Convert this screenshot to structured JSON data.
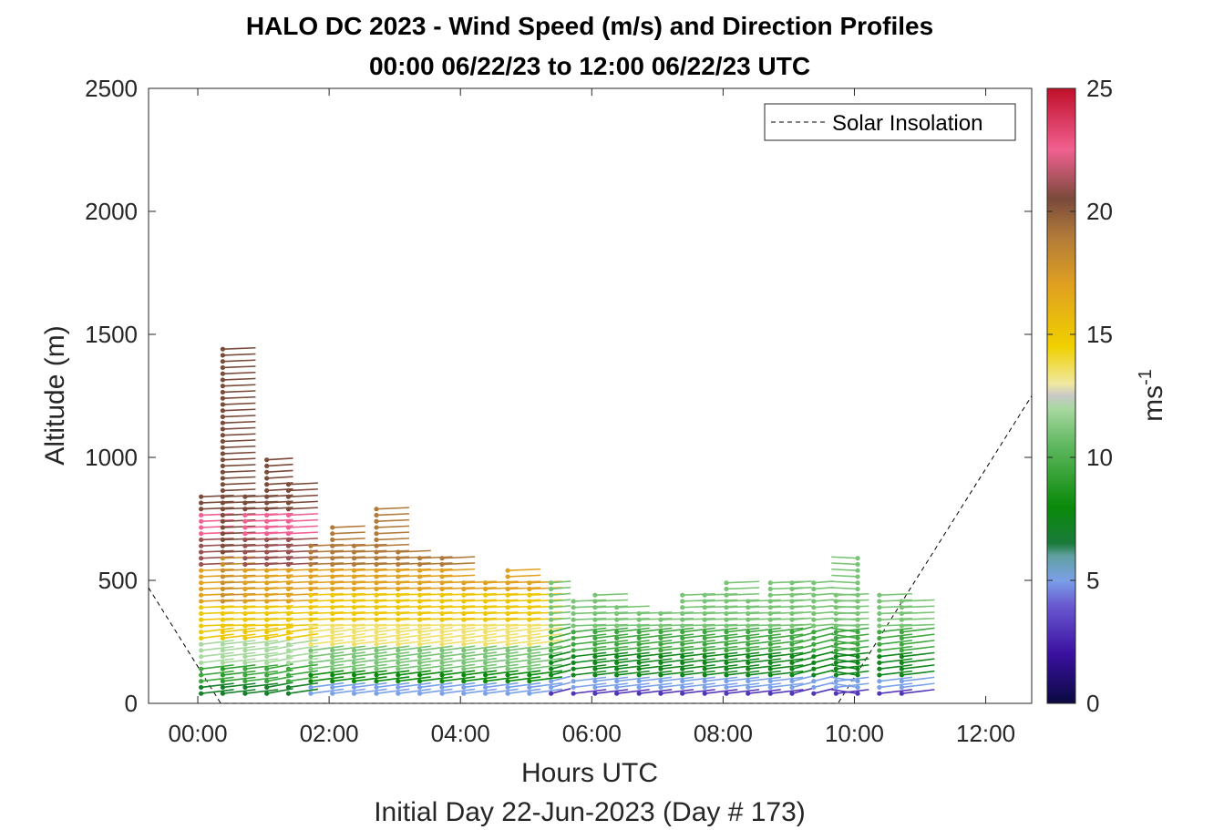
{
  "chart_data": {
    "type": "scatter",
    "title": "HALO DC 2023 - Wind Speed (m/s) and Direction Profiles",
    "subtitle": "00:00 06/22/23 to 12:00 06/22/23  UTC",
    "xlabel": "Hours UTC",
    "xlabel2": "Initial Day 22-Jun-2023 (Day # 173)",
    "ylabel": "Altitude (m)",
    "xlim": [
      -0.75,
      12.7
    ],
    "ylim": [
      0,
      2500
    ],
    "x_ticks": [
      0,
      2,
      4,
      6,
      8,
      10,
      12
    ],
    "x_tick_labels": [
      "00:00",
      "02:00",
      "04:00",
      "06:00",
      "08:00",
      "10:00",
      "12:00"
    ],
    "y_ticks": [
      0,
      500,
      1000,
      1500,
      2000,
      2500
    ],
    "y_tick_labels": [
      "0",
      "500",
      "1000",
      "1500",
      "2000",
      "2500"
    ],
    "colorbar": {
      "label": "ms",
      "label_superscript": "-1",
      "range": [
        0,
        25
      ],
      "ticks": [
        0,
        5,
        10,
        15,
        20,
        25
      ],
      "tick_labels": [
        "0",
        "5",
        "10",
        "15",
        "20",
        "25"
      ]
    },
    "legend": {
      "position": "top-right",
      "entries": [
        "Solar Insolation"
      ]
    },
    "solar_insolation_curve": {
      "x": [
        -0.75,
        0.35,
        0.35,
        9.75,
        9.75,
        12.7
      ],
      "y": [
        470,
        0,
        0,
        0,
        0,
        1250
      ]
    },
    "profiles": [
      {
        "t": 0.05,
        "top": 850,
        "tail": [
          0.5,
          0.2
        ],
        "band": "low"
      },
      {
        "t": 0.38,
        "top": 1450,
        "tail": [
          0.5,
          0.2
        ],
        "band": "tall"
      },
      {
        "t": 0.72,
        "top": 850,
        "tail": [
          0.5,
          0.2
        ],
        "band": "low"
      },
      {
        "t": 1.05,
        "top": 1000,
        "tail": [
          0.4,
          0.25
        ],
        "band": "low"
      },
      {
        "t": 1.38,
        "top": 900,
        "tail": [
          0.45,
          0.22
        ],
        "band": "low"
      },
      {
        "t": 1.72,
        "top": 660,
        "tail": [
          0.5,
          0.22
        ],
        "band": "mid"
      },
      {
        "t": 2.05,
        "top": 720,
        "tail": [
          0.5,
          0.22
        ],
        "band": "mid"
      },
      {
        "t": 2.38,
        "top": 660,
        "tail": [
          0.5,
          0.22
        ],
        "band": "mid"
      },
      {
        "t": 2.72,
        "top": 790,
        "tail": [
          0.5,
          0.22
        ],
        "band": "mid"
      },
      {
        "t": 3.05,
        "top": 620,
        "tail": [
          0.5,
          0.22
        ],
        "band": "mid"
      },
      {
        "t": 3.38,
        "top": 600,
        "tail": [
          0.5,
          0.22
        ],
        "band": "mid"
      },
      {
        "t": 3.72,
        "top": 610,
        "tail": [
          0.5,
          0.22
        ],
        "band": "mid"
      },
      {
        "t": 4.05,
        "top": 500,
        "tail": [
          0.5,
          0.22
        ],
        "band": "mid"
      },
      {
        "t": 4.38,
        "top": 500,
        "tail": [
          0.5,
          0.22
        ],
        "band": "mid"
      },
      {
        "t": 4.72,
        "top": 540,
        "tail": [
          0.5,
          0.22
        ],
        "band": "mid"
      },
      {
        "t": 5.05,
        "top": 500,
        "tail": [
          0.5,
          0.22
        ],
        "band": "mid"
      },
      {
        "t": 5.38,
        "top": 500,
        "tail": [
          0.3,
          0.25
        ],
        "band": "green"
      },
      {
        "t": 5.72,
        "top": 420,
        "tail": [
          0.5,
          0.2
        ],
        "band": "green"
      },
      {
        "t": 6.05,
        "top": 450,
        "tail": [
          0.5,
          0.2
        ],
        "band": "green"
      },
      {
        "t": 6.38,
        "top": 400,
        "tail": [
          0.5,
          0.2
        ],
        "band": "green"
      },
      {
        "t": 6.72,
        "top": 380,
        "tail": [
          0.5,
          0.2
        ],
        "band": "green"
      },
      {
        "t": 7.05,
        "top": 380,
        "tail": [
          0.5,
          0.2
        ],
        "band": "green"
      },
      {
        "t": 7.38,
        "top": 440,
        "tail": [
          0.5,
          0.2
        ],
        "band": "green"
      },
      {
        "t": 7.72,
        "top": 450,
        "tail": [
          0.5,
          0.2
        ],
        "band": "green"
      },
      {
        "t": 8.05,
        "top": 500,
        "tail": [
          0.5,
          0.2
        ],
        "band": "green"
      },
      {
        "t": 8.38,
        "top": 430,
        "tail": [
          0.5,
          0.2
        ],
        "band": "green"
      },
      {
        "t": 8.72,
        "top": 500,
        "tail": [
          0.5,
          0.2
        ],
        "band": "green"
      },
      {
        "t": 9.05,
        "top": 500,
        "tail": [
          0.3,
          0.25
        ],
        "band": "green"
      },
      {
        "t": 9.38,
        "top": 500,
        "tail": [
          0.3,
          0.25
        ],
        "band": "green"
      },
      {
        "t": 9.72,
        "top": 450,
        "tail": [
          0.5,
          0.2
        ],
        "band": "green"
      },
      {
        "t": 10.05,
        "top": 600,
        "tail": [
          -0.4,
          0.2
        ],
        "band": "green"
      },
      {
        "t": 10.38,
        "top": 450,
        "tail": [
          0.5,
          0.2
        ],
        "band": "green"
      },
      {
        "t": 10.72,
        "top": 430,
        "tail": [
          0.5,
          0.2
        ],
        "band": "green"
      }
    ]
  }
}
